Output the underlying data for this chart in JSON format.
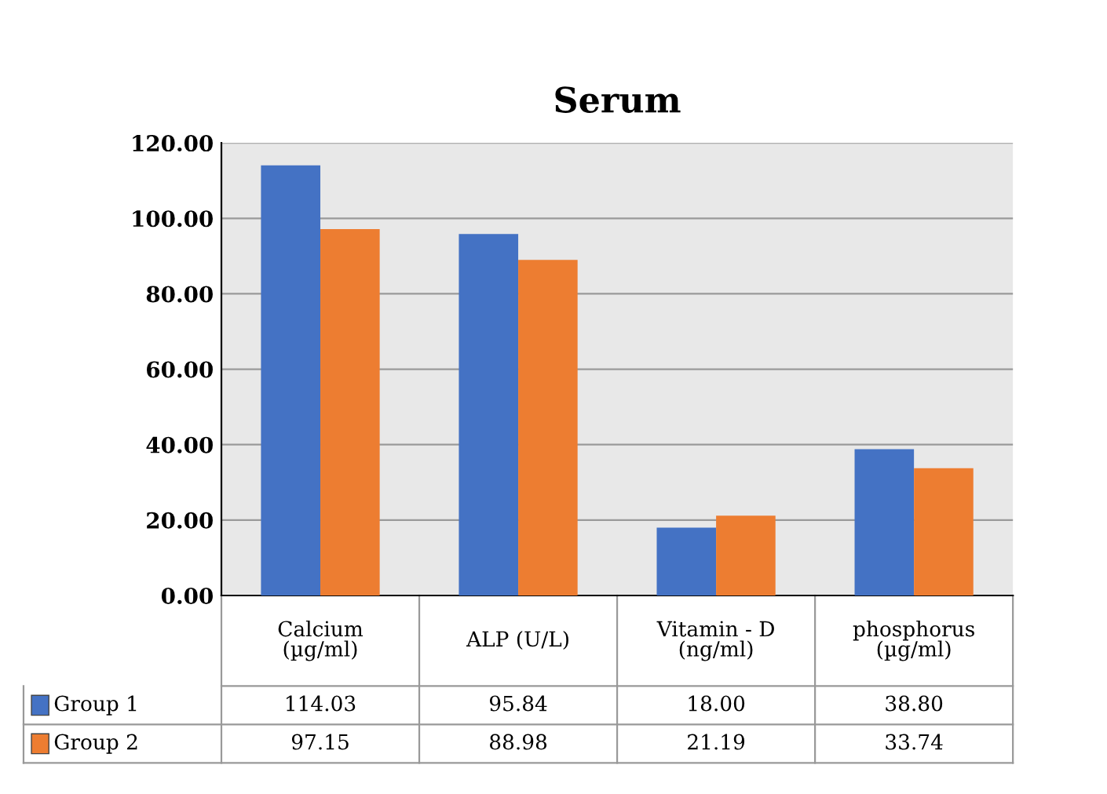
{
  "chart_data": {
    "type": "bar",
    "title": "Serum",
    "categories": [
      "Calcium\n(µg/ml)",
      "ALP (U/L)",
      "Vitamin - D\n(ng/ml)",
      "phosphorus\n(µg/ml)"
    ],
    "series": [
      {
        "name": "Group 1",
        "color": "#4472c4",
        "values": [
          114.03,
          95.84,
          18.0,
          38.8
        ],
        "value_labels": [
          "114.03",
          "95.84",
          "18.00",
          "38.80"
        ]
      },
      {
        "name": "Group 2",
        "color": "#ed7d31",
        "values": [
          97.15,
          88.98,
          21.19,
          33.74
        ],
        "value_labels": [
          "97.15",
          "88.98",
          "21.19",
          "33.74"
        ]
      }
    ],
    "ylim": [
      0,
      120
    ],
    "yticks": [
      {
        "value": 0,
        "label": "0.00"
      },
      {
        "value": 20,
        "label": "20.00"
      },
      {
        "value": 40,
        "label": "40.00"
      },
      {
        "value": 60,
        "label": "60.00"
      },
      {
        "value": 80,
        "label": "80.00"
      },
      {
        "value": 100,
        "label": "100.00"
      },
      {
        "value": 120,
        "label": "120.00"
      }
    ],
    "grid": "y",
    "legend": "bottom"
  }
}
